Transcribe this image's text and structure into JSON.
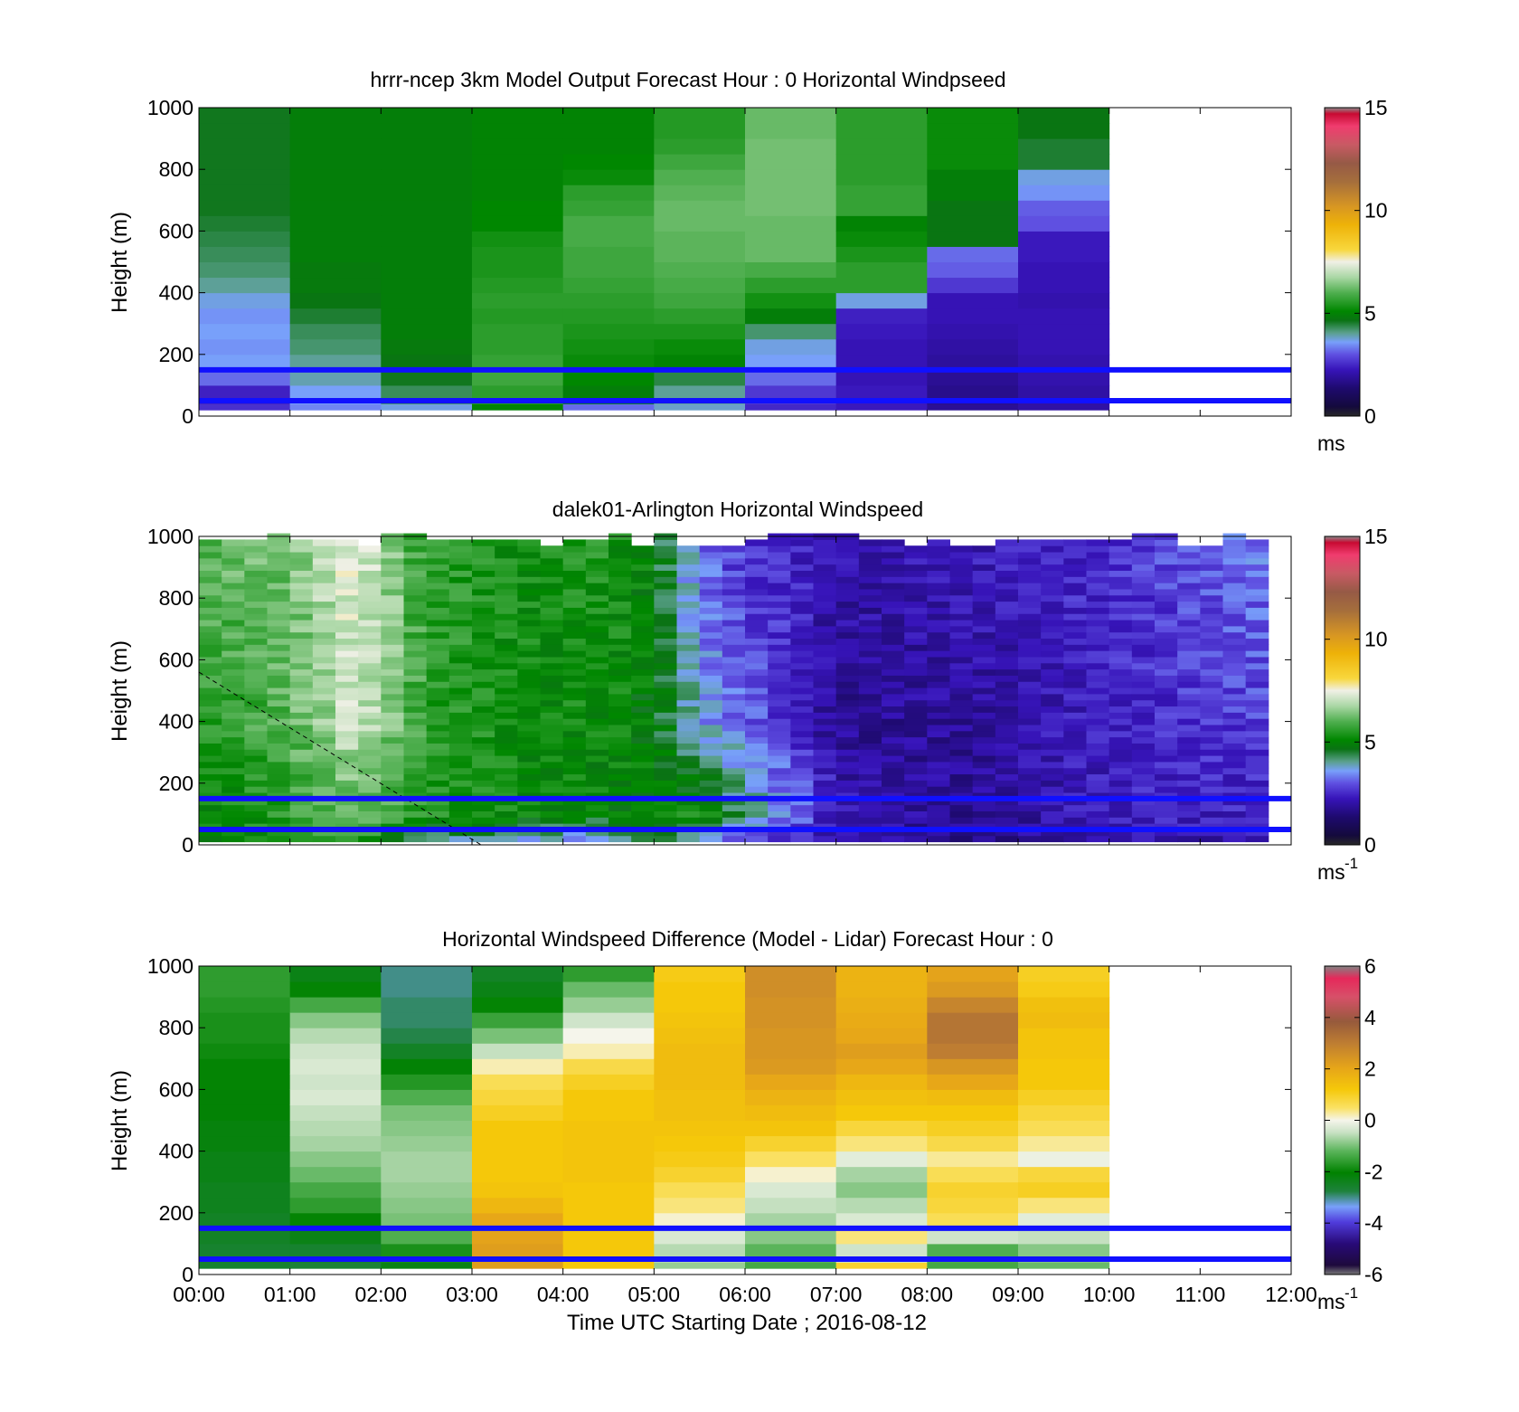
{
  "figure": {
    "xlabel": "Time UTC  Starting Date ; 2016-08-12",
    "x_tick_labels": [
      "00:00",
      "01:00",
      "02:00",
      "03:00",
      "04:00",
      "05:00",
      "06:00",
      "07:00",
      "08:00",
      "09:00",
      "10:00",
      "11:00",
      "12:00"
    ],
    "y_tick_labels": [
      "0",
      "200",
      "400",
      "600",
      "800",
      "1000"
    ]
  },
  "chart_data": [
    {
      "type": "heatmap",
      "title": "hrrr-ncep 3km Model Output   Forecast Hour : 0 Horizontal Windpseed",
      "ylabel": "Height (m)",
      "xlabel": "",
      "xlim": [
        0,
        12
      ],
      "ylim": [
        0,
        1000
      ],
      "x_unit": "hours UTC",
      "colorbar": {
        "min": 0,
        "max": 15,
        "ticks": [
          "0",
          "5",
          "10",
          "15"
        ],
        "unit_label": "ms",
        "unit_sup": ""
      },
      "heights": [
        40,
        100,
        150,
        200,
        250,
        300,
        350,
        400,
        450,
        500,
        550,
        600,
        650,
        700,
        750,
        800,
        850,
        900,
        950,
        1000
      ],
      "columns": [
        {
          "t_start": 0,
          "t_end": 1,
          "values": [
            2.6,
            2.4,
            3.2,
            3.6,
            3.5,
            3.6,
            3.5,
            3.7,
            4.0,
            4.2,
            4.3,
            4.4,
            4.5,
            4.6,
            4.6,
            4.6,
            4.6,
            4.6,
            4.6,
            4.6
          ]
        },
        {
          "t_start": 1,
          "t_end": 2,
          "values": [
            3.4,
            3.6,
            3.9,
            4.0,
            4.2,
            4.3,
            4.5,
            4.7,
            4.8,
            4.8,
            4.9,
            4.9,
            4.9,
            4.9,
            4.9,
            4.9,
            4.9,
            4.9,
            4.9,
            4.9
          ]
        },
        {
          "t_start": 2,
          "t_end": 3,
          "values": [
            3.7,
            4.3,
            4.6,
            4.7,
            4.8,
            4.9,
            4.9,
            4.9,
            4.9,
            4.9,
            4.9,
            4.9,
            4.9,
            4.9,
            4.9,
            4.9,
            4.9,
            4.9,
            4.9,
            4.9
          ]
        },
        {
          "t_start": 3,
          "t_end": 4,
          "values": [
            5.0,
            5.6,
            5.8,
            5.7,
            5.6,
            5.6,
            5.5,
            5.6,
            5.5,
            5.4,
            5.4,
            5.3,
            5.1,
            5.1,
            5.0,
            5.0,
            5.0,
            5.0,
            5.0,
            5.0
          ]
        },
        {
          "t_start": 4,
          "t_end": 5,
          "values": [
            3.2,
            4.9,
            5.1,
            5.2,
            5.3,
            5.4,
            5.5,
            5.6,
            5.7,
            5.8,
            5.8,
            5.9,
            5.9,
            5.7,
            5.6,
            5.2,
            5.1,
            5.0,
            5.0,
            5.0
          ]
        },
        {
          "t_start": 5,
          "t_end": 6,
          "values": [
            3.8,
            4.0,
            4.4,
            5.0,
            5.2,
            5.4,
            5.6,
            5.8,
            5.9,
            6.0,
            6.1,
            6.1,
            6.2,
            6.2,
            6.1,
            6.0,
            5.8,
            5.6,
            5.5,
            5.5
          ]
        },
        {
          "t_start": 6,
          "t_end": 7,
          "values": [
            2.5,
            2.7,
            3.2,
            3.6,
            3.7,
            4.2,
            4.9,
            5.3,
            5.6,
            5.9,
            6.2,
            6.2,
            6.2,
            6.3,
            6.3,
            6.3,
            6.3,
            6.3,
            6.2,
            6.2
          ]
        },
        {
          "t_start": 7,
          "t_end": 8,
          "values": [
            2.3,
            2.3,
            2.2,
            2.2,
            2.2,
            2.3,
            2.4,
            3.7,
            5.6,
            5.6,
            5.4,
            5.2,
            5.0,
            5.7,
            5.7,
            5.6,
            5.6,
            5.6,
            5.6,
            5.6
          ]
        },
        {
          "t_start": 8,
          "t_end": 9,
          "values": [
            1.8,
            1.7,
            1.8,
            1.9,
            2.0,
            2.1,
            2.2,
            2.2,
            2.7,
            3.1,
            3.2,
            4.7,
            4.7,
            4.7,
            4.9,
            4.9,
            5.2,
            5.2,
            5.2,
            5.2
          ]
        },
        {
          "t_start": 9,
          "t_end": 10,
          "values": [
            2.0,
            2.0,
            2.1,
            2.1,
            2.2,
            2.2,
            2.2,
            2.1,
            2.2,
            2.2,
            2.3,
            2.3,
            3.0,
            3.1,
            3.5,
            3.7,
            4.5,
            4.5,
            4.7,
            4.7
          ]
        }
      ],
      "reference_lines_m": [
        50,
        150
      ],
      "reference_line_color": "#1010ff"
    },
    {
      "type": "heatmap",
      "title": "dalek01-Arlington  Horizontal Windspeed",
      "ylabel": "Height (m)",
      "xlabel": "",
      "xlim": [
        0,
        12
      ],
      "ylim": [
        0,
        1000
      ],
      "x_unit": "hours UTC",
      "colorbar": {
        "min": 0,
        "max": 15,
        "ticks": [
          "0",
          "5",
          "10",
          "15"
        ],
        "unit_label": "ms",
        "unit_sup": "-1"
      },
      "profile_interval_hours": 0.25,
      "profiles_end_hour": 11.75,
      "speed_profile_knots": [
        [
          0.0,
          4.8,
          5.0,
          5.5,
          6.0
        ],
        [
          1.0,
          5.5,
          5.6,
          6.0,
          6.3
        ],
        [
          1.75,
          5.6,
          6.2,
          7.2,
          7.4
        ],
        [
          2.5,
          4.0,
          5.4,
          5.6,
          5.6
        ],
        [
          3.5,
          3.6,
          5.2,
          5.2,
          5.3
        ],
        [
          4.5,
          3.2,
          5.0,
          5.2,
          5.4
        ],
        [
          5.0,
          4.5,
          5.0,
          4.9,
          4.9
        ],
        [
          5.5,
          3.6,
          5.3,
          3.6,
          3.3
        ],
        [
          6.0,
          2.8,
          4.2,
          3.2,
          2.7
        ],
        [
          6.5,
          2.4,
          3.4,
          2.6,
          2.5
        ],
        [
          7.0,
          2.0,
          2.2,
          1.8,
          2.0
        ],
        [
          8.5,
          1.6,
          1.8,
          1.9,
          2.2
        ],
        [
          10.0,
          2.2,
          2.3,
          2.4,
          2.6
        ],
        [
          11.75,
          2.0,
          2.4,
          2.8,
          3.3
        ]
      ],
      "dashed_line": [
        [
          0,
          560
        ],
        [
          3.1,
          0
        ]
      ],
      "reference_lines_m": [
        50,
        150
      ],
      "reference_line_color": "#1010ff"
    },
    {
      "type": "heatmap",
      "title": "Horizontal Windspeed Difference (Model - Lidar) Forecast Hour : 0",
      "ylabel": "Height (m)",
      "xlabel": "Time UTC  Starting Date ; 2016-08-12",
      "xlim": [
        0,
        12
      ],
      "ylim": [
        0,
        1000
      ],
      "x_unit": "hours UTC",
      "colorbar": {
        "min": -6,
        "max": 6,
        "ticks": [
          "-6",
          "-4",
          "-2",
          "0",
          "2",
          "4",
          "6"
        ],
        "unit_label": "ms",
        "unit_sup": "-1"
      },
      "heights": [
        40,
        100,
        150,
        200,
        250,
        300,
        350,
        400,
        450,
        500,
        550,
        600,
        650,
        700,
        750,
        800,
        850,
        900,
        950,
        1000
      ],
      "columns": [
        {
          "t_start": 0,
          "t_end": 1,
          "values": [
            -2.6,
            -2.6,
            -2.5,
            -2.5,
            -2.4,
            -2.4,
            -2.3,
            -2.3,
            -2.2,
            -2.2,
            -2.1,
            -2.1,
            -2.0,
            -2.0,
            -1.9,
            -1.8,
            -1.8,
            -1.7,
            -1.6,
            -1.6
          ]
        },
        {
          "t_start": 1,
          "t_end": 2,
          "values": [
            -2.7,
            -2.6,
            -2.3,
            -2.0,
            -1.6,
            -1.4,
            -1.1,
            -0.9,
            -0.7,
            -0.6,
            -0.5,
            -0.3,
            -0.4,
            -0.3,
            -0.4,
            -0.6,
            -0.9,
            -1.4,
            -2.0,
            -2.3
          ]
        },
        {
          "t_start": 2,
          "t_end": 3,
          "values": [
            -2.3,
            -1.8,
            -1.3,
            -1.0,
            -0.9,
            -0.8,
            -0.7,
            -0.7,
            -0.8,
            -0.9,
            -1.0,
            -1.3,
            -1.7,
            -2.1,
            -2.5,
            -2.8,
            -2.9,
            -2.9,
            -3.0,
            -3.0
          ]
        },
        {
          "t_start": 3,
          "t_end": 4,
          "values": [
            2.2,
            2.2,
            2.1,
            2.0,
            1.6,
            1.3,
            1.2,
            1.2,
            1.2,
            1.2,
            1.0,
            0.8,
            0.6,
            0.2,
            -0.5,
            -1.0,
            -1.5,
            -2.0,
            -2.3,
            -2.5
          ]
        },
        {
          "t_start": 4,
          "t_end": 5,
          "values": [
            1.2,
            1.2,
            1.2,
            1.2,
            1.2,
            1.2,
            1.3,
            1.3,
            1.3,
            1.3,
            1.2,
            1.2,
            1.0,
            0.7,
            0.2,
            0.0,
            -0.4,
            -0.8,
            -1.1,
            -1.6
          ]
        },
        {
          "t_start": 5,
          "t_end": 6,
          "values": [
            -0.8,
            -0.6,
            -0.3,
            0.1,
            0.4,
            0.6,
            0.9,
            1.1,
            1.2,
            1.3,
            1.4,
            1.4,
            1.5,
            1.5,
            1.5,
            1.4,
            1.3,
            1.2,
            1.2,
            1.1
          ]
        },
        {
          "t_start": 6,
          "t_end": 7,
          "values": [
            -1.4,
            -1.2,
            -0.9,
            -0.7,
            -0.5,
            -0.3,
            0.1,
            0.5,
            0.9,
            1.3,
            1.5,
            1.7,
            2.0,
            2.3,
            2.4,
            2.4,
            2.5,
            2.5,
            2.6,
            2.6
          ]
        },
        {
          "t_start": 7,
          "t_end": 8,
          "values": [
            0.9,
            -0.4,
            0.4,
            -0.3,
            -0.6,
            -0.9,
            -0.7,
            -0.2,
            0.4,
            0.8,
            1.2,
            1.4,
            1.6,
            2.0,
            2.2,
            2.0,
            1.9,
            1.8,
            1.7,
            1.7
          ]
        },
        {
          "t_start": 8,
          "t_end": 9,
          "values": [
            -1.4,
            -1.3,
            -0.4,
            0.6,
            0.8,
            0.9,
            0.6,
            0.3,
            0.7,
            1.0,
            1.2,
            1.5,
            2.0,
            2.4,
            3.0,
            3.2,
            3.2,
            2.8,
            2.3,
            2.1
          ]
        },
        {
          "t_start": 9,
          "t_end": 10,
          "values": [
            -1.1,
            -0.9,
            -0.5,
            -0.2,
            0.4,
            1.0,
            0.8,
            -0.1,
            0.3,
            0.6,
            0.8,
            1.0,
            1.2,
            1.2,
            1.3,
            1.3,
            1.5,
            1.4,
            1.1,
            1.0
          ]
        }
      ],
      "reference_lines_m": [
        50,
        150
      ],
      "reference_line_color": "#1010ff"
    }
  ]
}
